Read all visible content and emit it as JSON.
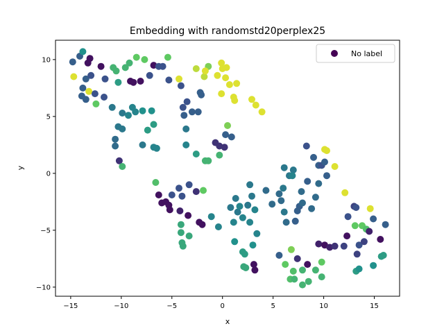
{
  "chart_data": {
    "type": "scatter",
    "title": "Embedding with randomstd20perplex25",
    "xlabel": "x",
    "ylabel": "y",
    "xlim": [
      -16.5,
      17.5
    ],
    "ylim": [
      -10.8,
      11.7
    ],
    "xticks": [
      -15,
      -10,
      -5,
      0,
      5,
      10,
      15
    ],
    "yticks": [
      -10,
      -5,
      0,
      5,
      10
    ],
    "grid": false,
    "legend": {
      "label": "No label",
      "placement": "top-right",
      "color": "#440154"
    },
    "colormap": [
      "#440154",
      "#3b528b",
      "#21918c",
      "#5ec962",
      "#fde725"
    ],
    "points": [
      {
        "x": -14.8,
        "y": 9.8,
        "c": 0.3
      },
      {
        "x": -14.1,
        "y": 10.3,
        "c": 0.3
      },
      {
        "x": -13.8,
        "y": 10.7,
        "c": 0.5
      },
      {
        "x": -13.3,
        "y": 9.7,
        "c": 0.05
      },
      {
        "x": -13.1,
        "y": 10.1,
        "c": 0.05
      },
      {
        "x": -13.8,
        "y": 7.5,
        "c": 0.3
      },
      {
        "x": -13.5,
        "y": 8.3,
        "c": 0.3
      },
      {
        "x": -13.0,
        "y": 8.6,
        "c": 0.25
      },
      {
        "x": -13.2,
        "y": 7.2,
        "c": 0.95
      },
      {
        "x": -12.6,
        "y": 7.0,
        "c": 0.25
      },
      {
        "x": -12.5,
        "y": 6.1,
        "c": 0.75
      },
      {
        "x": -13.9,
        "y": 6.8,
        "c": 0.3
      },
      {
        "x": -13.5,
        "y": 6.5,
        "c": 0.3
      },
      {
        "x": -14.7,
        "y": 8.5,
        "c": 0.95
      },
      {
        "x": -12.0,
        "y": 9.4,
        "c": 0.05
      },
      {
        "x": -11.6,
        "y": 8.3,
        "c": 0.25
      },
      {
        "x": -11.7,
        "y": 6.7,
        "c": 0.25
      },
      {
        "x": -10.8,
        "y": 9.3,
        "c": 0.65
      },
      {
        "x": -10.5,
        "y": 9.0,
        "c": 0.65
      },
      {
        "x": -10.3,
        "y": 8.0,
        "c": 0.55
      },
      {
        "x": -9.6,
        "y": 9.3,
        "c": 0.65
      },
      {
        "x": -9.2,
        "y": 9.7,
        "c": 0.65
      },
      {
        "x": -9.1,
        "y": 8.1,
        "c": 0.05
      },
      {
        "x": -8.8,
        "y": 8.0,
        "c": 0.05
      },
      {
        "x": -8.5,
        "y": 10.2,
        "c": 0.75
      },
      {
        "x": -8.1,
        "y": 8.1,
        "c": 0.05
      },
      {
        "x": -7.7,
        "y": 10.0,
        "c": 0.75
      },
      {
        "x": -7.2,
        "y": 8.6,
        "c": 0.25
      },
      {
        "x": -6.8,
        "y": 9.5,
        "c": 0.05
      },
      {
        "x": -6.3,
        "y": 9.4,
        "c": 0.25
      },
      {
        "x": -5.9,
        "y": 9.4,
        "c": 0.25
      },
      {
        "x": -5.4,
        "y": 10.2,
        "c": 0.75
      },
      {
        "x": -5.3,
        "y": 8.2,
        "c": 0.25
      },
      {
        "x": -4.3,
        "y": 8.3,
        "c": 0.95
      },
      {
        "x": -4.1,
        "y": 7.7,
        "c": 0.25
      },
      {
        "x": -3.5,
        "y": 6.3,
        "c": 0.25
      },
      {
        "x": -3.9,
        "y": 5.8,
        "c": 0.25
      },
      {
        "x": -3.8,
        "y": 5.1,
        "c": 0.3
      },
      {
        "x": -3.0,
        "y": 5.4,
        "c": 0.3
      },
      {
        "x": -2.4,
        "y": 5.4,
        "c": 0.3
      },
      {
        "x": -2.2,
        "y": 7.1,
        "c": 0.3
      },
      {
        "x": -2.1,
        "y": 6.9,
        "c": 0.3
      },
      {
        "x": -2.6,
        "y": 9.2,
        "c": 0.9
      },
      {
        "x": -1.8,
        "y": 8.5,
        "c": 0.9
      },
      {
        "x": -1.4,
        "y": 9.4,
        "c": 0.8
      },
      {
        "x": -1.7,
        "y": 9.0,
        "c": 0.95
      },
      {
        "x": -0.5,
        "y": 8.6,
        "c": 0.95
      },
      {
        "x": -0.1,
        "y": 9.7,
        "c": 0.95
      },
      {
        "x": 0.0,
        "y": 9.2,
        "c": 0.95
      },
      {
        "x": 0.4,
        "y": 9.3,
        "c": 0.95
      },
      {
        "x": 0.3,
        "y": 8.4,
        "c": 0.95
      },
      {
        "x": 0.7,
        "y": 7.8,
        "c": 0.95
      },
      {
        "x": 1.4,
        "y": 7.9,
        "c": 0.95
      },
      {
        "x": -0.1,
        "y": 7.0,
        "c": 0.95
      },
      {
        "x": 1.1,
        "y": 6.7,
        "c": 0.95
      },
      {
        "x": 1.2,
        "y": 6.4,
        "c": 0.95
      },
      {
        "x": 2.9,
        "y": 6.5,
        "c": 0.95
      },
      {
        "x": 3.3,
        "y": 6.0,
        "c": 0.95
      },
      {
        "x": 3.9,
        "y": 5.4,
        "c": 0.95
      },
      {
        "x": -10.9,
        "y": 5.8,
        "c": 0.4
      },
      {
        "x": -9.9,
        "y": 5.3,
        "c": 0.4
      },
      {
        "x": -9.3,
        "y": 5.1,
        "c": 0.45
      },
      {
        "x": -8.9,
        "y": 5.8,
        "c": 0.45
      },
      {
        "x": -8.6,
        "y": 5.4,
        "c": 0.45
      },
      {
        "x": -7.9,
        "y": 5.5,
        "c": 0.5
      },
      {
        "x": -7.0,
        "y": 5.5,
        "c": 0.5
      },
      {
        "x": -7.4,
        "y": 3.8,
        "c": 0.55
      },
      {
        "x": -6.8,
        "y": 4.3,
        "c": 0.55
      },
      {
        "x": -10.3,
        "y": 4.1,
        "c": 0.4
      },
      {
        "x": -9.9,
        "y": 3.9,
        "c": 0.4
      },
      {
        "x": -10.6,
        "y": 3.0,
        "c": 0.35
      },
      {
        "x": -10.6,
        "y": 2.4,
        "c": 0.35
      },
      {
        "x": -7.9,
        "y": 2.5,
        "c": 0.4
      },
      {
        "x": -6.8,
        "y": 2.3,
        "c": 0.45
      },
      {
        "x": -6.5,
        "y": 2.2,
        "c": 0.45
      },
      {
        "x": -3.6,
        "y": 3.9,
        "c": 0.4
      },
      {
        "x": -3.6,
        "y": 2.5,
        "c": 0.45
      },
      {
        "x": -2.6,
        "y": 1.7,
        "c": 0.55
      },
      {
        "x": -1.7,
        "y": 1.1,
        "c": 0.65
      },
      {
        "x": -1.4,
        "y": 1.1,
        "c": 0.65
      },
      {
        "x": -0.3,
        "y": 1.6,
        "c": 0.65
      },
      {
        "x": -10.2,
        "y": 1.1,
        "c": 0.15
      },
      {
        "x": -9.9,
        "y": 0.6,
        "c": 0.65
      },
      {
        "x": -0.7,
        "y": 2.7,
        "c": 0.15
      },
      {
        "x": -0.3,
        "y": 2.4,
        "c": 0.15
      },
      {
        "x": 0.2,
        "y": 2.3,
        "c": 0.15
      },
      {
        "x": 0.3,
        "y": 3.4,
        "c": 0.3
      },
      {
        "x": 0.9,
        "y": 3.2,
        "c": 0.3
      },
      {
        "x": 0.5,
        "y": 4.2,
        "c": 0.8
      },
      {
        "x": -6.6,
        "y": -0.8,
        "c": 0.7
      },
      {
        "x": -6.3,
        "y": -1.9,
        "c": 0.05
      },
      {
        "x": -6.0,
        "y": -2.6,
        "c": 0.05
      },
      {
        "x": -5.6,
        "y": -2.5,
        "c": 0.05
      },
      {
        "x": -5.3,
        "y": -2.8,
        "c": 0.05
      },
      {
        "x": -5.2,
        "y": -3.2,
        "c": 0.05
      },
      {
        "x": -5.0,
        "y": -1.9,
        "c": 0.25
      },
      {
        "x": -4.3,
        "y": -1.3,
        "c": 0.25
      },
      {
        "x": -4.0,
        "y": -2.0,
        "c": 0.25
      },
      {
        "x": -4.2,
        "y": -3.3,
        "c": 0.1
      },
      {
        "x": -3.3,
        "y": -1.0,
        "c": 0.25
      },
      {
        "x": -3.4,
        "y": -3.7,
        "c": 0.05
      },
      {
        "x": -2.6,
        "y": -1.6,
        "c": 0.15
      },
      {
        "x": -2.3,
        "y": -4.3,
        "c": 0.05
      },
      {
        "x": -2.0,
        "y": -4.5,
        "c": 0.05
      },
      {
        "x": -1.9,
        "y": -1.5,
        "c": 0.75
      },
      {
        "x": -1.1,
        "y": -3.8,
        "c": 0.45
      },
      {
        "x": -0.4,
        "y": -4.7,
        "c": 0.45
      },
      {
        "x": -4.1,
        "y": -4.5,
        "c": 0.6
      },
      {
        "x": -3.3,
        "y": -5.5,
        "c": 0.6
      },
      {
        "x": -4.1,
        "y": -5.2,
        "c": 0.6
      },
      {
        "x": -4.0,
        "y": -6.1,
        "c": 0.6
      },
      {
        "x": -3.9,
        "y": -6.4,
        "c": 0.6
      },
      {
        "x": 0.8,
        "y": -3.0,
        "c": 0.4
      },
      {
        "x": 1.3,
        "y": -2.2,
        "c": 0.4
      },
      {
        "x": 1.5,
        "y": -3.4,
        "c": 0.4
      },
      {
        "x": 1.7,
        "y": -2.9,
        "c": 0.45
      },
      {
        "x": 1.1,
        "y": -4.3,
        "c": 0.45
      },
      {
        "x": 2.0,
        "y": -3.9,
        "c": 0.45
      },
      {
        "x": 2.5,
        "y": -2.8,
        "c": 0.4
      },
      {
        "x": 2.7,
        "y": -1.0,
        "c": 0.4
      },
      {
        "x": 2.9,
        "y": -2.0,
        "c": 0.4
      },
      {
        "x": 3.2,
        "y": -3.2,
        "c": 0.45
      },
      {
        "x": 2.7,
        "y": -4.3,
        "c": 0.45
      },
      {
        "x": 3.4,
        "y": -5.3,
        "c": 0.45
      },
      {
        "x": 1.2,
        "y": -6.0,
        "c": 0.5
      },
      {
        "x": 2.0,
        "y": -6.9,
        "c": 0.55
      },
      {
        "x": 2.2,
        "y": -7.1,
        "c": 0.55
      },
      {
        "x": 2.1,
        "y": -8.2,
        "c": 0.6
      },
      {
        "x": 2.3,
        "y": -8.3,
        "c": 0.6
      },
      {
        "x": 3.0,
        "y": -6.3,
        "c": 0.5
      },
      {
        "x": 3.1,
        "y": -8.0,
        "c": 0.05
      },
      {
        "x": 3.2,
        "y": -8.5,
        "c": 0.05
      },
      {
        "x": 4.3,
        "y": -1.5,
        "c": 0.35
      },
      {
        "x": 4.9,
        "y": -2.7,
        "c": 0.35
      },
      {
        "x": 5.6,
        "y": -1.8,
        "c": 0.35
      },
      {
        "x": 5.8,
        "y": -2.4,
        "c": 0.35
      },
      {
        "x": 6.0,
        "y": -1.3,
        "c": 0.4
      },
      {
        "x": 6.1,
        "y": 0.5,
        "c": 0.4
      },
      {
        "x": 6.6,
        "y": -0.2,
        "c": 0.4
      },
      {
        "x": 7.0,
        "y": 0.3,
        "c": 0.4
      },
      {
        "x": 6.9,
        "y": -0.2,
        "c": 0.45
      },
      {
        "x": 6.1,
        "y": -3.4,
        "c": 0.4
      },
      {
        "x": 6.3,
        "y": -4.3,
        "c": 0.35
      },
      {
        "x": 7.4,
        "y": -3.3,
        "c": 0.3
      },
      {
        "x": 7.2,
        "y": -4.2,
        "c": 0.3
      },
      {
        "x": 7.6,
        "y": -2.9,
        "c": 0.3
      },
      {
        "x": 7.9,
        "y": -2.6,
        "c": 0.35
      },
      {
        "x": 7.8,
        "y": -1.6,
        "c": 0.35
      },
      {
        "x": 8.3,
        "y": 2.4,
        "c": 0.25
      },
      {
        "x": 8.4,
        "y": -0.7,
        "c": 0.3
      },
      {
        "x": 9.0,
        "y": 1.4,
        "c": 0.3
      },
      {
        "x": 9.5,
        "y": 0.7,
        "c": 0.3
      },
      {
        "x": 9.5,
        "y": -0.9,
        "c": 0.35
      },
      {
        "x": 9.8,
        "y": 0.7,
        "c": 0.25
      },
      {
        "x": 10.1,
        "y": 1.0,
        "c": 0.3
      },
      {
        "x": 10.3,
        "y": -0.2,
        "c": 0.3
      },
      {
        "x": 10.1,
        "y": 2.1,
        "c": 0.95
      },
      {
        "x": 10.3,
        "y": 2.0,
        "c": 0.95
      },
      {
        "x": 11.1,
        "y": 0.6,
        "c": 0.95
      },
      {
        "x": 9.2,
        "y": -2.1,
        "c": 0.35
      },
      {
        "x": 8.8,
        "y": -3.1,
        "c": 0.35
      },
      {
        "x": 5.6,
        "y": -7.2,
        "c": 0.3
      },
      {
        "x": 6.2,
        "y": -8.0,
        "c": 0.75
      },
      {
        "x": 6.8,
        "y": -6.7,
        "c": 0.8
      },
      {
        "x": 7.0,
        "y": -8.6,
        "c": 0.7
      },
      {
        "x": 7.4,
        "y": -7.5,
        "c": 0.15
      },
      {
        "x": 7.9,
        "y": -8.5,
        "c": 0.65
      },
      {
        "x": 8.4,
        "y": -8.0,
        "c": 0.05
      },
      {
        "x": 6.7,
        "y": -9.3,
        "c": 0.7
      },
      {
        "x": 7.1,
        "y": -9.3,
        "c": 0.65
      },
      {
        "x": 7.9,
        "y": -9.8,
        "c": 0.65
      },
      {
        "x": 8.5,
        "y": -9.5,
        "c": 0.65
      },
      {
        "x": 9.2,
        "y": -8.5,
        "c": 0.65
      },
      {
        "x": 9.5,
        "y": -6.2,
        "c": 0.1
      },
      {
        "x": 9.8,
        "y": -7.8,
        "c": 0.75
      },
      {
        "x": 9.8,
        "y": -9.1,
        "c": 0.65
      },
      {
        "x": 10.1,
        "y": -6.3,
        "c": 0.05
      },
      {
        "x": 10.6,
        "y": -6.5,
        "c": 0.1
      },
      {
        "x": 11.1,
        "y": -6.4,
        "c": 0.15
      },
      {
        "x": 12.0,
        "y": -6.4,
        "c": 0.2
      },
      {
        "x": 12.1,
        "y": -1.7,
        "c": 0.95
      },
      {
        "x": 12.4,
        "y": -3.8,
        "c": 0.25
      },
      {
        "x": 12.3,
        "y": -5.5,
        "c": 0.05
      },
      {
        "x": 13.0,
        "y": -2.9,
        "c": 0.2
      },
      {
        "x": 13.2,
        "y": -3.0,
        "c": 0.25
      },
      {
        "x": 13.1,
        "y": -4.6,
        "c": 0.75
      },
      {
        "x": 13.5,
        "y": -6.3,
        "c": 0.25
      },
      {
        "x": 13.3,
        "y": -7.1,
        "c": 0.2
      },
      {
        "x": 13.2,
        "y": -8.6,
        "c": 0.55
      },
      {
        "x": 13.5,
        "y": -8.4,
        "c": 0.5
      },
      {
        "x": 13.8,
        "y": -4.6,
        "c": 0.75
      },
      {
        "x": 14.0,
        "y": -6.0,
        "c": 0.2
      },
      {
        "x": 14.2,
        "y": -4.9,
        "c": 0.7
      },
      {
        "x": 14.6,
        "y": -3.1,
        "c": 0.95
      },
      {
        "x": 14.5,
        "y": -5.1,
        "c": 0.1
      },
      {
        "x": 14.9,
        "y": -4.0,
        "c": 0.3
      },
      {
        "x": 14.9,
        "y": -8.1,
        "c": 0.5
      },
      {
        "x": 15.6,
        "y": -5.8,
        "c": 0.05
      },
      {
        "x": 15.7,
        "y": -7.3,
        "c": 0.55
      },
      {
        "x": 15.9,
        "y": -7.2,
        "c": 0.55
      },
      {
        "x": 16.1,
        "y": -4.5,
        "c": 0.3
      }
    ]
  }
}
